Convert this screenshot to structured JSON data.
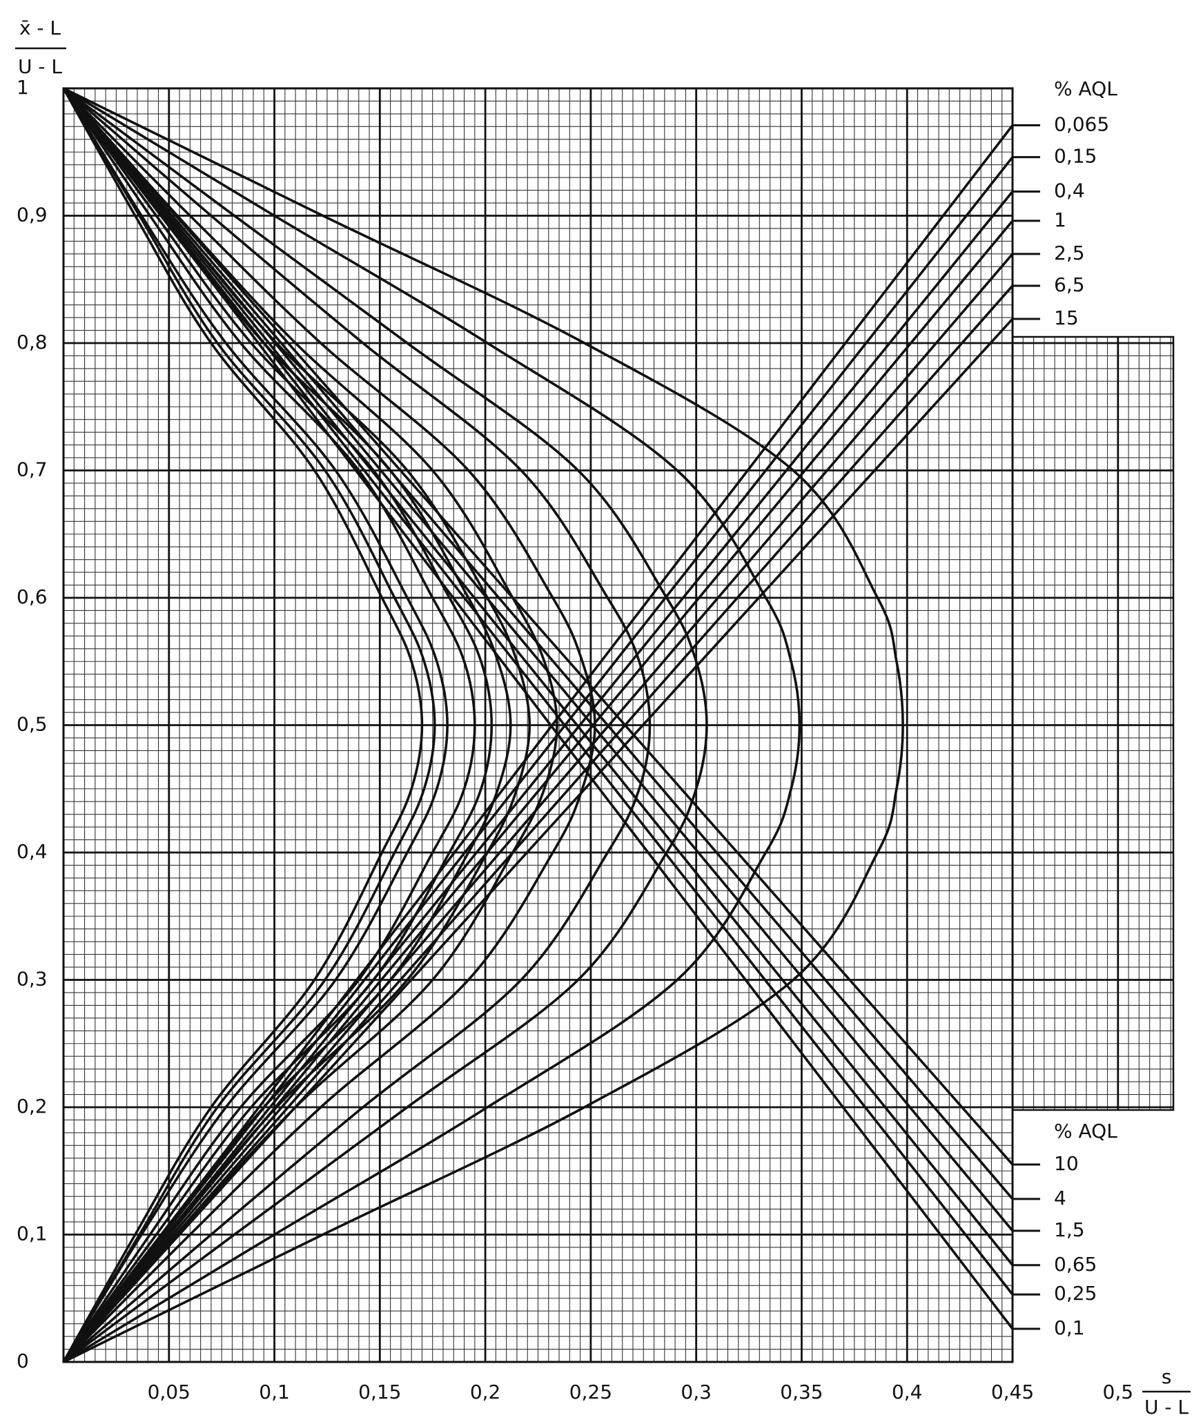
{
  "chart_data": {
    "type": "line",
    "y_label": {
      "numerator": "x̄ - L",
      "denominator": "U - L"
    },
    "x_label": {
      "numerator": "s",
      "denominator": "U - L"
    },
    "xlim": [
      0,
      0.45
    ],
    "ylim": [
      0,
      1
    ],
    "xticks": [
      {
        "value": 0.05,
        "label": "0,05"
      },
      {
        "value": 0.1,
        "label": "0,1"
      },
      {
        "value": 0.15,
        "label": "0,15"
      },
      {
        "value": 0.2,
        "label": "0,2"
      },
      {
        "value": 0.25,
        "label": "0,25"
      },
      {
        "value": 0.3,
        "label": "0,3"
      },
      {
        "value": 0.35,
        "label": "0,35"
      },
      {
        "value": 0.4,
        "label": "0,4"
      },
      {
        "value": 0.45,
        "label": "0,45"
      },
      {
        "value": 0.5,
        "label": "0,5"
      }
    ],
    "yticks": [
      0,
      {
        "value": 0.1,
        "label": "0,1"
      },
      {
        "value": 0.2,
        "label": "0,2"
      },
      {
        "value": 0.3,
        "label": "0,3"
      },
      {
        "value": 0.4,
        "label": "0,4"
      },
      {
        "value": 0.5,
        "label": "0,5"
      },
      {
        "value": 0.6,
        "label": "0,6"
      },
      {
        "value": 0.7,
        "label": "0,7"
      },
      {
        "value": 0.8,
        "label": "0,8"
      },
      {
        "value": 0.9,
        "label": "0,9"
      },
      1
    ],
    "grid": true,
    "minor_grid": {
      "x": 0.005,
      "y": 0.01
    },
    "color": "#111111",
    "upper_legend_title": "% AQL",
    "lower_legend_title": "% AQL",
    "curves": [
      {
        "x": [
          0,
          0.034,
          0.07,
          0.119,
          0.151,
          0.165,
          0.17,
          0.165,
          0.151,
          0.119,
          0.07,
          0.034,
          0
        ],
        "y": [
          1,
          0.9,
          0.8,
          0.7,
          0.6,
          0.55,
          0.5,
          0.45,
          0.4,
          0.3,
          0.2,
          0.1,
          0
        ]
      },
      {
        "x": [
          0,
          0.036,
          0.073,
          0.124,
          0.157,
          0.171,
          0.176,
          0.171,
          0.157,
          0.124,
          0.073,
          0.036,
          0
        ],
        "y": [
          1,
          0.9,
          0.8,
          0.7,
          0.6,
          0.55,
          0.5,
          0.45,
          0.4,
          0.3,
          0.2,
          0.1,
          0
        ]
      },
      {
        "x": [
          0,
          0.037,
          0.077,
          0.129,
          0.163,
          0.177,
          0.182,
          0.177,
          0.163,
          0.129,
          0.077,
          0.037,
          0
        ],
        "y": [
          1,
          0.9,
          0.8,
          0.7,
          0.6,
          0.55,
          0.5,
          0.45,
          0.4,
          0.3,
          0.2,
          0.1,
          0
        ]
      },
      {
        "x": [
          0,
          0.041,
          0.084,
          0.14,
          0.175,
          0.19,
          0.195,
          0.19,
          0.175,
          0.14,
          0.084,
          0.041,
          0
        ],
        "y": [
          1,
          0.9,
          0.8,
          0.7,
          0.6,
          0.55,
          0.5,
          0.45,
          0.4,
          0.3,
          0.2,
          0.1,
          0
        ]
      },
      {
        "x": [
          0,
          0.044,
          0.089,
          0.147,
          0.183,
          0.198,
          0.203,
          0.198,
          0.183,
          0.147,
          0.089,
          0.044,
          0
        ],
        "y": [
          1,
          0.9,
          0.8,
          0.7,
          0.6,
          0.55,
          0.5,
          0.45,
          0.4,
          0.3,
          0.2,
          0.1,
          0
        ]
      },
      {
        "x": [
          0,
          0.047,
          0.095,
          0.155,
          0.192,
          0.206,
          0.212,
          0.206,
          0.192,
          0.155,
          0.095,
          0.047,
          0
        ],
        "y": [
          1,
          0.9,
          0.8,
          0.7,
          0.6,
          0.55,
          0.5,
          0.45,
          0.4,
          0.3,
          0.2,
          0.1,
          0
        ]
      },
      {
        "x": [
          0,
          0.05,
          0.101,
          0.163,
          0.201,
          0.215,
          0.221,
          0.215,
          0.201,
          0.163,
          0.101,
          0.05,
          0
        ],
        "y": [
          1,
          0.9,
          0.8,
          0.7,
          0.6,
          0.55,
          0.5,
          0.45,
          0.4,
          0.3,
          0.2,
          0.1,
          0
        ]
      },
      {
        "x": [
          0,
          0.054,
          0.11,
          0.175,
          0.213,
          0.228,
          0.234,
          0.228,
          0.213,
          0.175,
          0.11,
          0.054,
          0
        ],
        "y": [
          1,
          0.9,
          0.8,
          0.7,
          0.6,
          0.55,
          0.5,
          0.45,
          0.4,
          0.3,
          0.2,
          0.1,
          0
        ]
      },
      {
        "x": [
          0,
          0.06,
          0.122,
          0.192,
          0.232,
          0.246,
          0.252,
          0.246,
          0.232,
          0.192,
          0.122,
          0.06,
          0
        ],
        "y": [
          1,
          0.9,
          0.8,
          0.7,
          0.6,
          0.55,
          0.5,
          0.45,
          0.4,
          0.3,
          0.2,
          0.1,
          0
        ]
      },
      {
        "x": [
          0,
          0.07,
          0.142,
          0.217,
          0.258,
          0.273,
          0.278,
          0.273,
          0.258,
          0.217,
          0.142,
          0.07,
          0
        ],
        "y": [
          1,
          0.9,
          0.8,
          0.7,
          0.6,
          0.55,
          0.5,
          0.45,
          0.4,
          0.3,
          0.2,
          0.1,
          0
        ]
      },
      {
        "x": [
          0,
          0.081,
          0.163,
          0.244,
          0.286,
          0.3,
          0.305,
          0.3,
          0.286,
          0.244,
          0.163,
          0.081,
          0
        ],
        "y": [
          1,
          0.9,
          0.8,
          0.7,
          0.6,
          0.55,
          0.5,
          0.45,
          0.4,
          0.3,
          0.2,
          0.1,
          0
        ]
      },
      {
        "x": [
          0,
          0.1,
          0.201,
          0.291,
          0.333,
          0.345,
          0.349,
          0.345,
          0.333,
          0.291,
          0.201,
          0.1,
          0
        ],
        "y": [
          1,
          0.9,
          0.8,
          0.7,
          0.6,
          0.55,
          0.5,
          0.45,
          0.4,
          0.3,
          0.2,
          0.1,
          0
        ]
      },
      {
        "x": [
          0,
          0.123,
          0.247,
          0.346,
          0.386,
          0.395,
          0.398,
          0.395,
          0.386,
          0.346,
          0.247,
          0.123,
          0
        ],
        "y": [
          1,
          0.9,
          0.8,
          0.7,
          0.6,
          0.55,
          0.5,
          0.45,
          0.4,
          0.3,
          0.2,
          0.1,
          0
        ]
      }
    ],
    "series": [
      {
        "name": "0,065",
        "group": "upper",
        "x": [
          0,
          0.45
        ],
        "y": [
          0,
          0.971
        ]
      },
      {
        "name": "0,15",
        "group": "upper",
        "x": [
          0,
          0.45
        ],
        "y": [
          0,
          0.946
        ]
      },
      {
        "name": "0,4",
        "group": "upper",
        "x": [
          0,
          0.45
        ],
        "y": [
          0,
          0.919
        ]
      },
      {
        "name": "1",
        "group": "upper",
        "x": [
          0,
          0.45
        ],
        "y": [
          0,
          0.896
        ]
      },
      {
        "name": "2,5",
        "group": "upper",
        "x": [
          0,
          0.45
        ],
        "y": [
          0,
          0.87
        ]
      },
      {
        "name": "6,5",
        "group": "upper",
        "x": [
          0,
          0.45
        ],
        "y": [
          0,
          0.845
        ]
      },
      {
        "name": "15",
        "group": "upper",
        "x": [
          0,
          0.45
        ],
        "y": [
          0,
          0.819
        ]
      },
      {
        "name": "10",
        "group": "lower",
        "x": [
          0,
          0.45
        ],
        "y": [
          1,
          0.155
        ]
      },
      {
        "name": "4",
        "group": "lower",
        "x": [
          0,
          0.45
        ],
        "y": [
          1,
          0.128
        ]
      },
      {
        "name": "1,5",
        "group": "lower",
        "x": [
          0,
          0.45
        ],
        "y": [
          1,
          0.103
        ]
      },
      {
        "name": "0,65",
        "group": "lower",
        "x": [
          0,
          0.45
        ],
        "y": [
          1,
          0.076
        ]
      },
      {
        "name": "0,25",
        "group": "lower",
        "x": [
          0,
          0.45
        ],
        "y": [
          1,
          0.053
        ]
      },
      {
        "name": "0,1",
        "group": "lower",
        "x": [
          0,
          0.45
        ],
        "y": [
          1,
          0.026
        ]
      }
    ]
  }
}
